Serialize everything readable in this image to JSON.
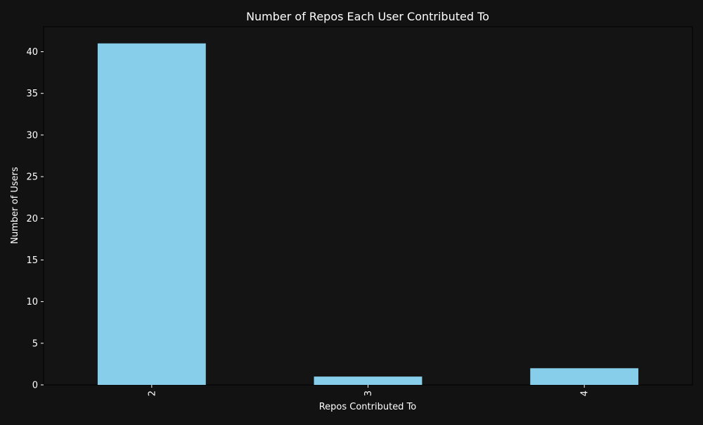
{
  "colors": {
    "background": "#121212",
    "plot_background": "#141414",
    "bar": "#87ceeb",
    "text": "#ffffff",
    "axis": "#000000"
  },
  "chart_data": {
    "type": "bar",
    "title": "Number of Repos Each User Contributed To",
    "xlabel": "Repos Contributed To",
    "ylabel": "Number of Users",
    "categories": [
      "2",
      "3",
      "4"
    ],
    "values": [
      41,
      1,
      2
    ],
    "ylim": [
      0,
      43
    ],
    "yticks": [
      0,
      5,
      10,
      15,
      20,
      25,
      30,
      35,
      40
    ],
    "x_tick_rotation": "vertical",
    "grid": false,
    "legend": "none"
  }
}
